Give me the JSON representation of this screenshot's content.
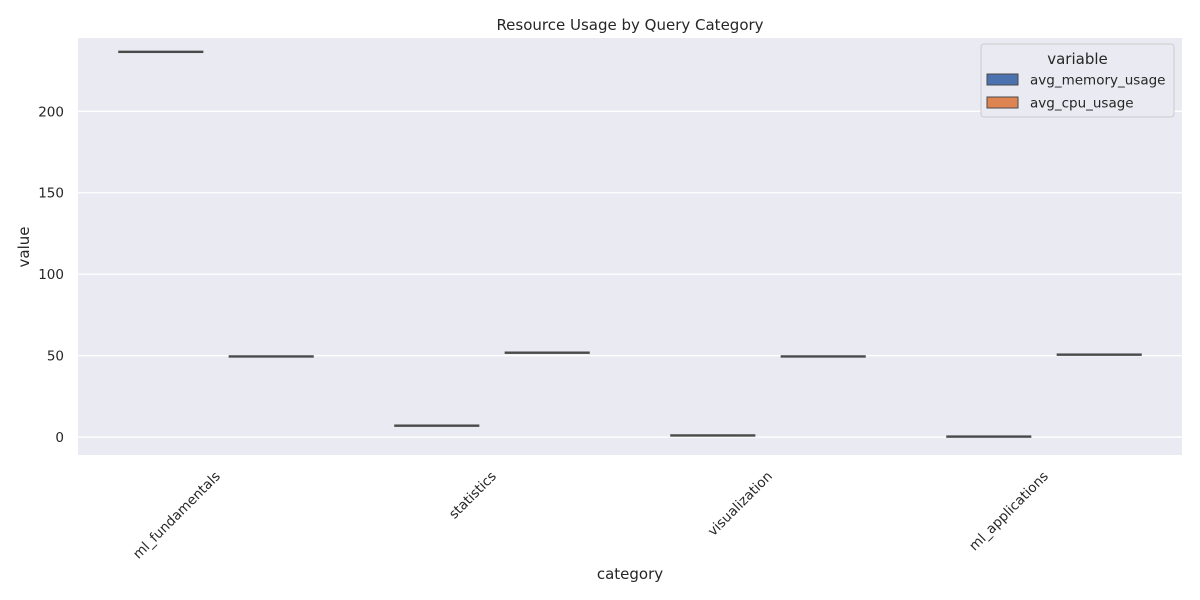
{
  "chart_data": {
    "type": "box",
    "title": "Resource Usage by Query Category",
    "xlabel": "category",
    "ylabel": "value",
    "categories": [
      "ml_fundamentals",
      "statistics",
      "visualization",
      "ml_applications"
    ],
    "series": [
      {
        "name": "avg_memory_usage",
        "color": "#4c72b0",
        "values": [
          236.5,
          7.0,
          1.0,
          0.3
        ]
      },
      {
        "name": "avg_cpu_usage",
        "color": "#dd8452",
        "values": [
          49.5,
          51.8,
          49.5,
          50.6
        ]
      }
    ],
    "yticks": [
      0,
      50,
      100,
      150,
      200
    ],
    "ylim": [
      -11,
      245
    ],
    "grid": true,
    "legend_title": "variable",
    "legend_position": "top-right",
    "background": "#eaeaf2",
    "median_color": "#4a4a4a"
  }
}
